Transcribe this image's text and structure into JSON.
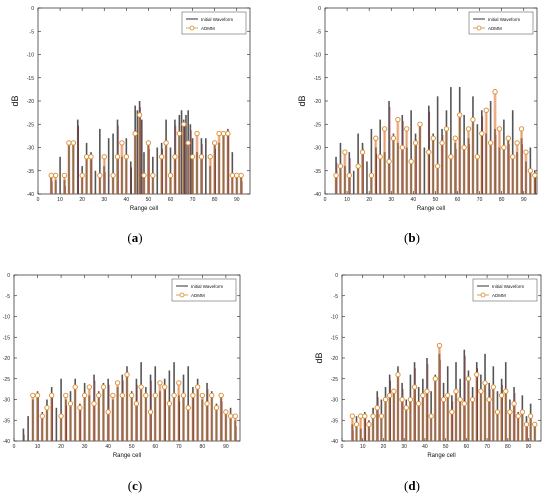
{
  "legend": {
    "initial": "Initial Waveform",
    "admm": "ADMM"
  },
  "colors": {
    "initial": "#555555",
    "admm": "#d98a2b",
    "admm_fill": "#e8845a",
    "initial_red": "#a02030"
  },
  "chart_data": [
    {
      "type": "bar",
      "caption": "a",
      "xlabel": "Range cell",
      "ylabel": "dB",
      "xlim": [
        0,
        96
      ],
      "ylim": [
        -40,
        0
      ],
      "xticks": [
        0,
        10,
        20,
        30,
        40,
        50,
        60,
        70,
        80,
        90
      ],
      "yticks": [
        0,
        -5,
        -10,
        -15,
        -20,
        -25,
        -30,
        -35,
        -40
      ],
      "legend_position": "top-right",
      "series": [
        {
          "name": "Initial Waveform",
          "x": [
            6,
            8,
            10,
            12,
            14,
            16,
            18,
            20,
            22,
            24,
            26,
            28,
            30,
            32,
            34,
            36,
            38,
            40,
            42,
            44,
            45,
            46,
            47,
            48,
            50,
            52,
            54,
            56,
            58,
            60,
            62,
            64,
            65,
            66,
            67,
            68,
            69,
            70,
            72,
            74,
            76,
            78,
            80,
            82,
            84,
            86,
            88,
            90,
            92
          ],
          "values": [
            -36,
            -37,
            -32,
            -37,
            -29,
            -29,
            -24,
            -34,
            -29,
            -31,
            -35,
            -26,
            -34,
            -28,
            -27,
            -24,
            -32,
            -28,
            -33,
            -21,
            -22,
            -20,
            -24,
            -31,
            -29,
            -32,
            -30,
            -29,
            -24,
            -30,
            -24,
            -23,
            -22,
            -24,
            -23,
            -22,
            -25,
            -28,
            -31,
            -28,
            -28,
            -34,
            -29,
            -29,
            -27,
            -26,
            -31,
            -36,
            -36
          ]
        },
        {
          "name": "ADMM",
          "x": [
            6,
            8,
            12,
            14,
            16,
            20,
            22,
            24,
            28,
            30,
            34,
            36,
            38,
            40,
            44,
            46,
            48,
            50,
            52,
            56,
            58,
            60,
            62,
            64,
            66,
            68,
            70,
            72,
            74,
            78,
            80,
            82,
            84,
            86,
            88,
            90,
            92
          ],
          "values": [
            -36,
            -36,
            -36,
            -29,
            -29,
            -36,
            -32,
            -32,
            -36,
            -32,
            -36,
            -32,
            -29,
            -32,
            -27,
            -23,
            -36,
            -29,
            -36,
            -32,
            -29,
            -36,
            -32,
            -27,
            -25,
            -29,
            -32,
            -27,
            -32,
            -32,
            -29,
            -27,
            -27,
            -27,
            -36,
            -36,
            -36
          ]
        }
      ]
    },
    {
      "type": "bar",
      "caption": "b",
      "xlabel": "Range cell",
      "ylabel": "dB",
      "xlim": [
        0,
        96
      ],
      "ylim": [
        -40,
        0
      ],
      "xticks": [
        0,
        10,
        20,
        30,
        40,
        50,
        60,
        70,
        80,
        90
      ],
      "yticks": [
        0,
        -5,
        -10,
        -15,
        -20,
        -25,
        -30,
        -35,
        -40
      ],
      "legend_position": "top-right",
      "series": [
        {
          "name": "Initial Waveform",
          "x": [
            5,
            7,
            9,
            11,
            13,
            15,
            17,
            19,
            21,
            23,
            25,
            27,
            29,
            31,
            33,
            35,
            37,
            39,
            41,
            43,
            45,
            47,
            49,
            51,
            53,
            55,
            57,
            59,
            61,
            63,
            65,
            67,
            69,
            71,
            73,
            75,
            77,
            79,
            81,
            83,
            85,
            87,
            89,
            91,
            93,
            95
          ],
          "values": [
            -32,
            -29,
            -34,
            -31,
            -35,
            -27,
            -29,
            -33,
            -26,
            -30,
            -24,
            -31,
            -20,
            -27,
            -29,
            -23,
            -30,
            -22,
            -27,
            -25,
            -30,
            -21,
            -27,
            -19,
            -26,
            -22,
            -17,
            -29,
            -17,
            -23,
            -28,
            -19,
            -25,
            -22,
            -27,
            -20,
            -26,
            -30,
            -24,
            -28,
            -22,
            -31,
            -28,
            -33,
            -30,
            -35
          ]
        },
        {
          "name": "ADMM",
          "x": [
            5,
            7,
            9,
            11,
            15,
            17,
            21,
            23,
            25,
            27,
            29,
            31,
            33,
            35,
            37,
            39,
            41,
            43,
            47,
            49,
            51,
            53,
            55,
            57,
            59,
            61,
            63,
            65,
            67,
            69,
            71,
            73,
            75,
            77,
            79,
            81,
            83,
            85,
            87,
            89,
            91,
            93,
            95
          ],
          "values": [
            -36,
            -34,
            -31,
            -36,
            -34,
            -31,
            -36,
            -28,
            -32,
            -26,
            -33,
            -28,
            -24,
            -30,
            -26,
            -33,
            -29,
            -25,
            -31,
            -28,
            -34,
            -29,
            -26,
            -32,
            -28,
            -23,
            -30,
            -26,
            -24,
            -32,
            -27,
            -22,
            -29,
            -18,
            -26,
            -30,
            -28,
            -32,
            -29,
            -26,
            -31,
            -35,
            -36
          ]
        }
      ]
    },
    {
      "type": "bar",
      "caption": "c",
      "xlabel": "Range cell",
      "ylabel": "dB",
      "xlim": [
        0,
        96
      ],
      "ylim": [
        -40,
        0
      ],
      "xticks": [
        0,
        10,
        20,
        30,
        40,
        50,
        60,
        70,
        80,
        90
      ],
      "yticks": [
        0,
        -5,
        -10,
        -15,
        -20,
        -25,
        -30,
        -35,
        -40
      ],
      "legend_position": "top-right",
      "series": [
        {
          "name": "Initial Waveform",
          "x": [
            4,
            6,
            8,
            10,
            12,
            14,
            16,
            18,
            20,
            22,
            24,
            26,
            28,
            30,
            32,
            34,
            36,
            38,
            40,
            42,
            44,
            46,
            48,
            50,
            52,
            54,
            56,
            58,
            60,
            62,
            64,
            66,
            68,
            70,
            72,
            74,
            76,
            78,
            80,
            82,
            84,
            86,
            88,
            90,
            92,
            94
          ],
          "values": [
            -37,
            -34,
            -30,
            -28,
            -33,
            -30,
            -27,
            -32,
            -25,
            -30,
            -28,
            -25,
            -31,
            -26,
            -29,
            -24,
            -28,
            -26,
            -25,
            -30,
            -27,
            -24,
            -22,
            -28,
            -25,
            -21,
            -27,
            -24,
            -22,
            -28,
            -25,
            -23,
            -21,
            -29,
            -24,
            -22,
            -27,
            -25,
            -30,
            -26,
            -28,
            -31,
            -29,
            -33,
            -32,
            -35
          ]
        },
        {
          "name": "ADMM",
          "x": [
            8,
            10,
            12,
            14,
            16,
            20,
            22,
            24,
            26,
            28,
            30,
            32,
            34,
            36,
            38,
            40,
            42,
            44,
            46,
            48,
            50,
            52,
            54,
            56,
            58,
            60,
            62,
            64,
            66,
            68,
            70,
            72,
            74,
            76,
            78,
            80,
            82,
            84,
            86,
            88,
            90,
            92,
            94
          ],
          "values": [
            -29,
            -29,
            -34,
            -32,
            -29,
            -34,
            -29,
            -31,
            -27,
            -32,
            -29,
            -27,
            -31,
            -29,
            -27,
            -33,
            -29,
            -26,
            -29,
            -24,
            -29,
            -31,
            -27,
            -29,
            -33,
            -29,
            -26,
            -27,
            -31,
            -29,
            -26,
            -29,
            -32,
            -29,
            -27,
            -29,
            -31,
            -29,
            -32,
            -29,
            -33,
            -34,
            -34
          ]
        }
      ]
    },
    {
      "type": "bar",
      "caption": "d",
      "xlabel": "Range cell",
      "ylabel": "dB",
      "xlim": [
        0,
        96
      ],
      "ylim": [
        -40,
        0
      ],
      "xticks": [
        0,
        10,
        20,
        30,
        40,
        50,
        60,
        70,
        80,
        90
      ],
      "yticks": [
        0,
        -5,
        -10,
        -15,
        -20,
        -25,
        -30,
        -35,
        -40
      ],
      "legend_position": "top-right",
      "series": [
        {
          "name": "Initial Waveform",
          "x": [
            5,
            7,
            9,
            11,
            13,
            15,
            17,
            19,
            21,
            23,
            25,
            27,
            29,
            31,
            33,
            35,
            37,
            39,
            41,
            43,
            45,
            47,
            49,
            51,
            53,
            55,
            57,
            59,
            61,
            63,
            65,
            67,
            69,
            71,
            73,
            75,
            77,
            79,
            81,
            83,
            85,
            87,
            89,
            91,
            93
          ],
          "values": [
            -36,
            -34,
            -37,
            -33,
            -35,
            -32,
            -28,
            -30,
            -27,
            -24,
            -28,
            -22,
            -26,
            -30,
            -24,
            -21,
            -27,
            -25,
            -20,
            -28,
            -24,
            -19,
            -26,
            -22,
            -29,
            -21,
            -25,
            -18,
            -23,
            -27,
            -21,
            -24,
            -19,
            -26,
            -22,
            -28,
            -25,
            -21,
            -30,
            -27,
            -33,
            -29,
            -34,
            -31,
            -36
          ]
        },
        {
          "name": "ADMM",
          "x": [
            5,
            7,
            9,
            11,
            13,
            15,
            17,
            19,
            21,
            23,
            25,
            27,
            29,
            31,
            33,
            35,
            37,
            39,
            41,
            43,
            45,
            47,
            49,
            51,
            53,
            55,
            57,
            59,
            61,
            63,
            65,
            67,
            69,
            71,
            73,
            75,
            77,
            79,
            81,
            83,
            85,
            87,
            89,
            91,
            93
          ],
          "values": [
            -34,
            -36,
            -34,
            -34,
            -36,
            -34,
            -32,
            -34,
            -30,
            -29,
            -28,
            -24,
            -30,
            -32,
            -30,
            -27,
            -31,
            -29,
            -28,
            -34,
            -25,
            -17,
            -30,
            -29,
            -33,
            -28,
            -30,
            -31,
            -25,
            -30,
            -24,
            -28,
            -26,
            -30,
            -27,
            -33,
            -29,
            -28,
            -33,
            -31,
            -34,
            -33,
            -36,
            -34,
            -36
          ]
        }
      ]
    }
  ]
}
